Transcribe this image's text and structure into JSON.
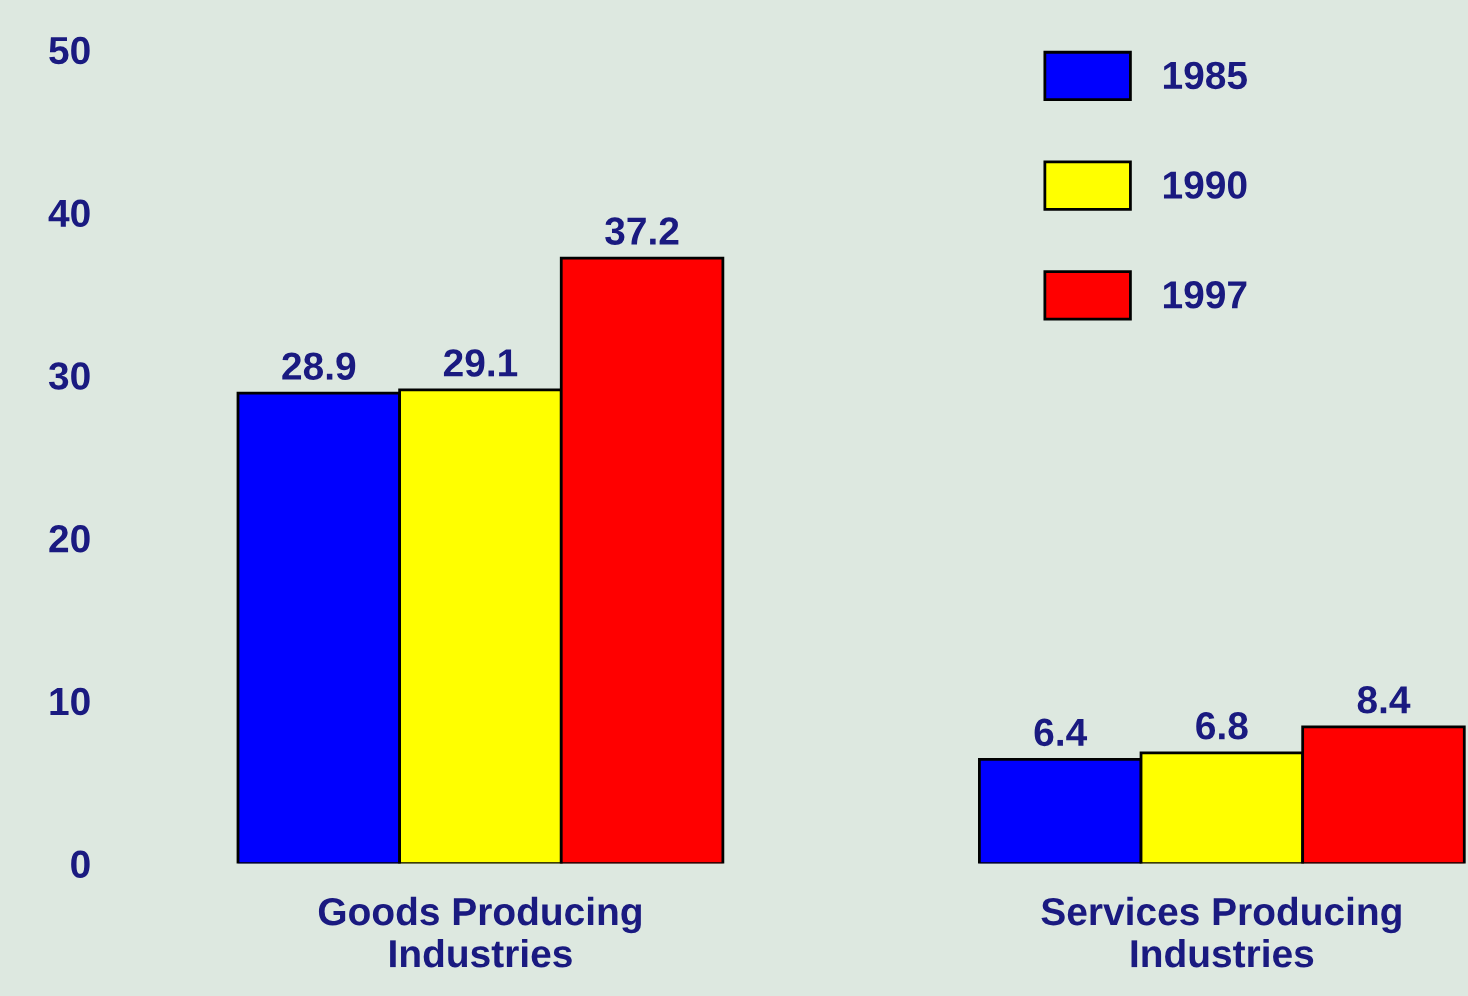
{
  "chart_data": {
    "type": "bar",
    "categories": [
      "Goods Producing\nIndustries",
      "Services Producing\nIndustries"
    ],
    "series": [
      {
        "name": "1985",
        "color": "#0000ff",
        "values": [
          28.9,
          6.4
        ]
      },
      {
        "name": "1990",
        "color": "#ffff00",
        "values": [
          29.1,
          6.8
        ]
      },
      {
        "name": "1997",
        "color": "#ff0000",
        "values": [
          37.2,
          8.4
        ]
      }
    ],
    "ylim": [
      0,
      50
    ],
    "yticks": [
      0,
      10,
      20,
      30,
      40,
      50
    ],
    "data_labels": true,
    "legend": "top right",
    "grid": false
  }
}
